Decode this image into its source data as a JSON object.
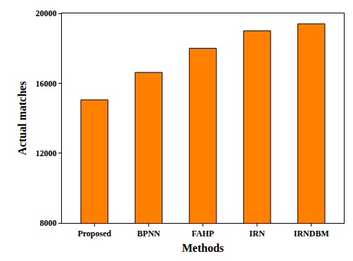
{
  "chart_data": {
    "type": "bar",
    "categories": [
      "Proposed",
      "BPNN",
      "FAHP",
      "IRN",
      "IRNDBM"
    ],
    "values": [
      15050,
      16620,
      18000,
      19000,
      19400
    ],
    "color": "#ff7f00",
    "x_label": "Methods",
    "y_label": "Actual matches",
    "ylim": [
      8000,
      20000
    ],
    "yticks": [
      8000,
      12000,
      16000,
      20000
    ],
    "grid": false
  }
}
